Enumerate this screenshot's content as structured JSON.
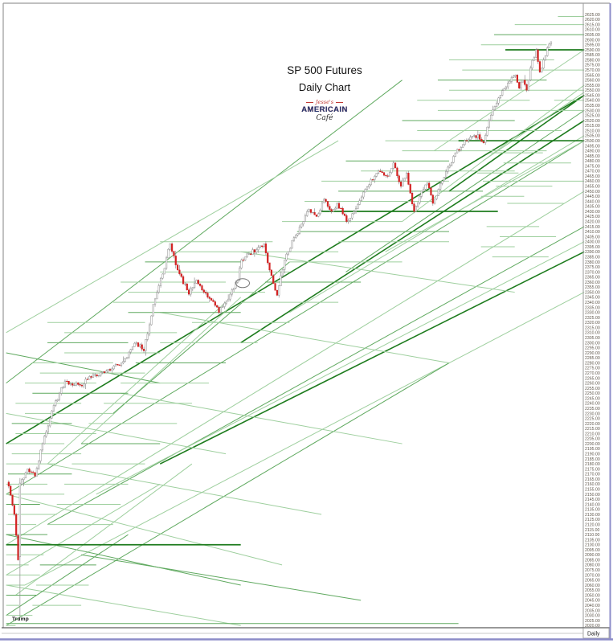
{
  "header": {
    "title_line1": "SP 500 Futures",
    "title_line2": "Daily Chart"
  },
  "logo": {
    "top": "Jesse's",
    "middle": "AMERICAIN",
    "bottom": "Café"
  },
  "annotations": {
    "trump": "Trump",
    "timeframe": "Daily"
  },
  "chart_data": {
    "type": "candlestick",
    "title": "SP 500 Futures",
    "subtitle": "Daily Chart",
    "x_axis_label": "Daily",
    "ylim": [
      2020,
      2625
    ],
    "y_tick_step": 5,
    "y_tick_format": "0.00",
    "grid": false,
    "legend": "none",
    "n_candles": 290,
    "close_anchors": [
      [
        0,
        2158
      ],
      [
        3,
        2130
      ],
      [
        5,
        2085
      ],
      [
        6,
        2160
      ],
      [
        10,
        2175
      ],
      [
        14,
        2168
      ],
      [
        18,
        2200
      ],
      [
        24,
        2238
      ],
      [
        30,
        2262
      ],
      [
        38,
        2258
      ],
      [
        45,
        2268
      ],
      [
        52,
        2272
      ],
      [
        60,
        2280
      ],
      [
        68,
        2300
      ],
      [
        72,
        2292
      ],
      [
        77,
        2338
      ],
      [
        82,
        2368
      ],
      [
        86,
        2398
      ],
      [
        90,
        2372
      ],
      [
        96,
        2348
      ],
      [
        100,
        2362
      ],
      [
        104,
        2350
      ],
      [
        108,
        2342
      ],
      [
        112,
        2330
      ],
      [
        118,
        2348
      ],
      [
        122,
        2362
      ],
      [
        124,
        2382
      ],
      [
        128,
        2388
      ],
      [
        132,
        2392
      ],
      [
        136,
        2398
      ],
      [
        139,
        2372
      ],
      [
        143,
        2347
      ],
      [
        147,
        2382
      ],
      [
        152,
        2404
      ],
      [
        157,
        2420
      ],
      [
        160,
        2432
      ],
      [
        164,
        2425
      ],
      [
        168,
        2442
      ],
      [
        172,
        2430
      ],
      [
        175,
        2438
      ],
      [
        180,
        2420
      ],
      [
        184,
        2430
      ],
      [
        190,
        2452
      ],
      [
        197,
        2470
      ],
      [
        202,
        2465
      ],
      [
        205,
        2478
      ],
      [
        209,
        2455
      ],
      [
        212,
        2468
      ],
      [
        216,
        2430
      ],
      [
        220,
        2450
      ],
      [
        223,
        2458
      ],
      [
        226,
        2438
      ],
      [
        229,
        2452
      ],
      [
        232,
        2464
      ],
      [
        238,
        2488
      ],
      [
        244,
        2500
      ],
      [
        250,
        2506
      ],
      [
        253,
        2498
      ],
      [
        256,
        2520
      ],
      [
        262,
        2545
      ],
      [
        266,
        2557
      ],
      [
        270,
        2565
      ],
      [
        272,
        2552
      ],
      [
        274,
        2560
      ],
      [
        276,
        2550
      ],
      [
        278,
        2572
      ],
      [
        281,
        2590
      ],
      [
        283,
        2568
      ],
      [
        285,
        2580
      ],
      [
        287,
        2592
      ],
      [
        289,
        2598
      ]
    ],
    "special_candles": {
      "6": [
        2088,
        2166,
        2028,
        2161
      ]
    },
    "levels": [
      [
        2623,
        293,
        307,
        0
      ],
      [
        2615,
        270,
        307,
        0
      ],
      [
        2605,
        259,
        307,
        1
      ],
      [
        2595,
        252,
        287,
        0
      ],
      [
        2590,
        265,
        307,
        2
      ],
      [
        2580,
        235,
        291,
        0
      ],
      [
        2570,
        242,
        307,
        0
      ],
      [
        2560,
        229,
        287,
        1
      ],
      [
        2550,
        235,
        307,
        0
      ],
      [
        2540,
        218,
        278,
        0
      ],
      [
        2540,
        291,
        307,
        0
      ],
      [
        2530,
        229,
        307,
        0
      ],
      [
        2520,
        210,
        270,
        1
      ],
      [
        2510,
        218,
        295,
        0
      ],
      [
        2500,
        201,
        261,
        0
      ],
      [
        2500,
        240,
        307,
        2
      ],
      [
        2490,
        210,
        287,
        0
      ],
      [
        2488,
        257,
        285,
        0
      ],
      [
        2480,
        180,
        235,
        1
      ],
      [
        2478,
        264,
        300,
        0
      ],
      [
        2470,
        188,
        270,
        0
      ],
      [
        2468,
        250,
        272,
        0
      ],
      [
        2460,
        167,
        235,
        0
      ],
      [
        2460,
        253,
        307,
        0
      ],
      [
        2455,
        260,
        290,
        0
      ],
      [
        2450,
        176,
        253,
        1
      ],
      [
        2445,
        252,
        275,
        0
      ],
      [
        2440,
        158,
        227,
        0
      ],
      [
        2438,
        266,
        296,
        0
      ],
      [
        2430,
        167,
        261,
        2
      ],
      [
        2420,
        146,
        210,
        0
      ],
      [
        2415,
        255,
        283,
        0
      ],
      [
        2410,
        154,
        235,
        1
      ],
      [
        2405,
        262,
        292,
        0
      ],
      [
        2400,
        81,
        141,
        0
      ],
      [
        2400,
        176,
        235,
        0
      ],
      [
        2395,
        252,
        270,
        0
      ],
      [
        2390,
        90,
        176,
        0
      ],
      [
        2385,
        258,
        288,
        0
      ],
      [
        2380,
        73,
        124,
        1
      ],
      [
        2380,
        150,
        210,
        0
      ],
      [
        2370,
        81,
        150,
        0
      ],
      [
        2360,
        60,
        116,
        0
      ],
      [
        2360,
        137,
        188,
        1
      ],
      [
        2350,
        64,
        137,
        0
      ],
      [
        2340,
        56,
        107,
        0
      ],
      [
        2340,
        124,
        176,
        0
      ],
      [
        2330,
        64,
        124,
        1
      ],
      [
        2320,
        21,
        73,
        0
      ],
      [
        2320,
        98,
        150,
        0
      ],
      [
        2310,
        30,
        90,
        0
      ],
      [
        2300,
        21,
        64,
        1
      ],
      [
        2300,
        81,
        133,
        0
      ],
      [
        2290,
        30,
        81,
        0
      ],
      [
        2280,
        13,
        56,
        0
      ],
      [
        2280,
        68,
        116,
        1
      ],
      [
        2270,
        17,
        73,
        0
      ],
      [
        2260,
        9,
        47,
        0
      ],
      [
        2260,
        60,
        107,
        0
      ],
      [
        2250,
        13,
        64,
        1
      ],
      [
        2240,
        4,
        39,
        0
      ],
      [
        2240,
        51,
        98,
        0
      ],
      [
        2230,
        9,
        56,
        0
      ],
      [
        2220,
        2,
        34,
        1
      ],
      [
        2220,
        43,
        90,
        0
      ],
      [
        2210,
        4,
        47,
        0
      ],
      [
        2200,
        0,
        30,
        0
      ],
      [
        2200,
        39,
        81,
        1
      ],
      [
        2190,
        2,
        39,
        0
      ],
      [
        2180,
        -1,
        26,
        0
      ],
      [
        2180,
        34,
        73,
        0
      ],
      [
        2170,
        0,
        34,
        1
      ],
      [
        2160,
        -1,
        21,
        0
      ],
      [
        2160,
        30,
        64,
        0
      ],
      [
        2150,
        0,
        30,
        0
      ],
      [
        2140,
        -1,
        17,
        1
      ],
      [
        2140,
        26,
        60,
        0
      ],
      [
        2130,
        0,
        26,
        0
      ],
      [
        2120,
        -1,
        15,
        0
      ],
      [
        2120,
        21,
        56,
        0
      ],
      [
        2110,
        -1,
        21,
        1
      ],
      [
        2100,
        -1,
        13,
        0
      ],
      [
        2100,
        19,
        51,
        0
      ],
      [
        2100,
        -1,
        124,
        2
      ],
      [
        2090,
        -1,
        19,
        0
      ],
      [
        2080,
        -1,
        11,
        0
      ],
      [
        2080,
        17,
        47,
        1
      ],
      [
        2070,
        -1,
        17,
        0
      ],
      [
        2060,
        -1,
        9,
        0
      ],
      [
        2060,
        15,
        43,
        0
      ],
      [
        2050,
        -1,
        15,
        1
      ],
      [
        2040,
        -1,
        6,
        0
      ],
      [
        2040,
        13,
        39,
        0
      ],
      [
        2030,
        -1,
        13,
        0
      ],
      [
        2022,
        -1,
        240,
        1
      ],
      [
        2020,
        -1,
        4,
        0
      ]
    ],
    "trendlines": [
      [
        -1,
        2200,
        307,
        2545,
        2
      ],
      [
        -1,
        2150,
        307,
        2500,
        1
      ],
      [
        -1,
        2100,
        307,
        2450,
        0
      ],
      [
        21,
        2120,
        307,
        2415,
        1
      ],
      [
        47,
        2150,
        307,
        2400,
        0
      ],
      [
        81,
        2180,
        307,
        2390,
        2
      ],
      [
        -1,
        2260,
        210,
        2560,
        1
      ],
      [
        -1,
        2310,
        176,
        2500,
        0
      ],
      [
        9,
        2060,
        307,
        2350,
        0
      ],
      [
        -1,
        2020,
        235,
        2280,
        1
      ],
      [
        124,
        2300,
        307,
        2520,
        2
      ],
      [
        150,
        2330,
        307,
        2505,
        0
      ],
      [
        180,
        2370,
        307,
        2530,
        1
      ],
      [
        210,
        2420,
        307,
        2555,
        0
      ],
      [
        235,
        2450,
        307,
        2545,
        2
      ],
      [
        227,
        2490,
        307,
        2590,
        0
      ],
      [
        253,
        2480,
        307,
        2548,
        0
      ],
      [
        201,
        2390,
        307,
        2500,
        0
      ],
      [
        -1,
        2150,
        146,
        2080,
        0
      ],
      [
        -1,
        2110,
        124,
        2060,
        1
      ],
      [
        21,
        2180,
        167,
        2130,
        0
      ],
      [
        -1,
        2230,
        116,
        2190,
        0
      ],
      [
        39,
        2090,
        188,
        2045,
        1
      ],
      [
        -1,
        2060,
        124,
        2020,
        0
      ],
      [
        60,
        2250,
        210,
        2200,
        0
      ],
      [
        81,
        2330,
        235,
        2280,
        0
      ],
      [
        124,
        2390,
        270,
        2350,
        0
      ],
      [
        -1,
        2290,
        81,
        2260,
        1
      ],
      [
        -1,
        2030,
        64,
        2110,
        1
      ],
      [
        -1,
        2070,
        81,
        2160,
        0
      ],
      [
        4,
        2050,
        98,
        2180,
        0
      ],
      [
        21,
        2180,
        116,
        2340,
        0
      ],
      [
        39,
        2200,
        124,
        2345,
        0
      ],
      [
        56,
        2230,
        150,
        2380,
        1
      ]
    ],
    "ellipse_annotation": {
      "candle_index": 125,
      "price": 2359
    },
    "colors": {
      "up_candle": "#ffffff",
      "down_candle": "#d32222",
      "candle_outline": "#8f8f8f",
      "wick": "#8f8f8f",
      "line_light": "#9ecf9e",
      "line_medium": "#5fa95f",
      "line_dark": "#1e7c1e",
      "axis_text": "#5e564b",
      "frame": "#9a9a9a",
      "chart_bottom_line": "#5c5c5c",
      "window_border_blue": "#8c8cc8",
      "annotation_ellipse": "#777777"
    }
  }
}
